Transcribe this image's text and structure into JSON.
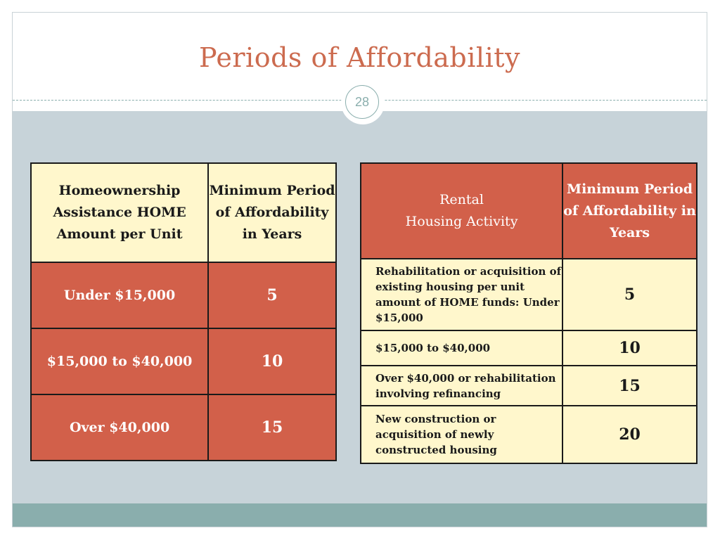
{
  "title": "Periods of Affordability",
  "page_number": "28",
  "homeownership_table": {
    "header_col1": "Homeownership Assistance HOME Amount per Unit",
    "header_col2": "Minimum Period of Affordability in Years",
    "rows": [
      {
        "amount": "Under $15,000",
        "years": "5"
      },
      {
        "amount": "$15,000 to $40,000",
        "years": "10"
      },
      {
        "amount": "Over $40,000",
        "years": "15"
      }
    ]
  },
  "rental_table": {
    "header_col1_line1": "Rental",
    "header_col1_line2": "Housing Activity",
    "header_col2": "Minimum Period of Affordability  in Years",
    "rows": [
      {
        "activity": "Rehabilitation or acquisition of existing housing per unit amount of HOME funds: Under $15,000",
        "years": "5"
      },
      {
        "activity": "$15,000 to $40,000",
        "years": "10"
      },
      {
        "activity": "Over $40,000 or rehabilitation involving refinancing",
        "years": "15"
      },
      {
        "activity": "New construction or acquisition of newly constructed housing",
        "years": "20"
      }
    ]
  },
  "colors": {
    "title": "#cc6b4f",
    "cream": "#fff7cc",
    "red": "#d2604a",
    "body_bg": "#c7d3d9",
    "footer": "#8aaead"
  }
}
